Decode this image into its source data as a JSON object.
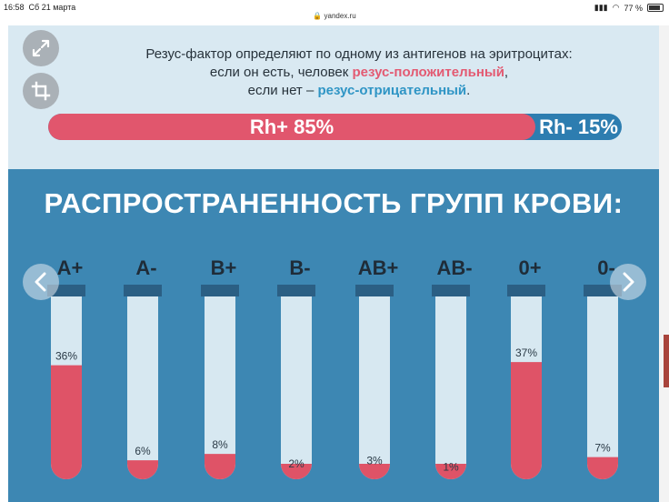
{
  "status_bar": {
    "time": "16:58",
    "date": "Сб 21 марта",
    "url": "yandex.ru",
    "battery": "77 %"
  },
  "intro": {
    "line1": "Резус-фактор определяют по одному из антигенов на эритроцитах:",
    "line2_prefix": "если он есть, человек ",
    "line2_highlight": "резус-положительный",
    "line2_suffix": ",",
    "line3_prefix": "если нет – ",
    "line3_highlight": "резус-отрицательный",
    "line3_suffix": "."
  },
  "rh_bar": {
    "positive_label": "Rh+  85%",
    "negative_label": "Rh-  15%",
    "positive_fraction": 0.85
  },
  "colors": {
    "accent_pink": "#e1566d",
    "band_blue": "#3d87b3",
    "light_band": "#d9e9f2",
    "tube_fill": "#d7e8f1",
    "tube_cap": "#2b5f84",
    "blood": "#df5367"
  },
  "chart_data": {
    "type": "bar",
    "title": "РАСПРОСТРАНЕННОСТЬ ГРУПП КРОВИ:",
    "categories": [
      "A+",
      "A-",
      "B+",
      "B-",
      "AB+",
      "AB-",
      "0+",
      "0-"
    ],
    "values": [
      36,
      6,
      8,
      2,
      3,
      1,
      37,
      7
    ],
    "labels": [
      "36%",
      "6%",
      "8%",
      "2%",
      "3%",
      "1%",
      "37%",
      "7%"
    ],
    "ylim": [
      0,
      56
    ],
    "grid": false,
    "legend": "none"
  }
}
